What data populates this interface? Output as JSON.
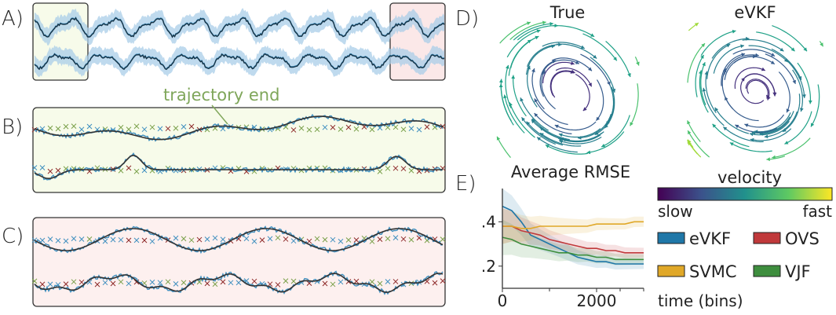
{
  "panel_labels": [
    "A)",
    "B)",
    "C)",
    "D)",
    "E)"
  ],
  "colors": {
    "data": "#3f8fbf",
    "band": "#a9cde8",
    "mean": "#173447",
    "truth": "#333333",
    "highlight_green": "#f7fbea",
    "highlight_pink": "#fbe8e8",
    "annotation": "#7fa65a",
    "cross_red": "#8e2a2a",
    "cross_green": "#7aa04a"
  },
  "annotation": {
    "text": "trajectory end"
  },
  "panel_d": {
    "titles": [
      "True",
      "eVKF"
    ],
    "icon": "streamplot-icon"
  },
  "chart_data": [
    {
      "type": "line",
      "panel": "E",
      "title": "Average RMSE",
      "xlabel": "time (bins)",
      "ylabel": "",
      "xlim": [
        0,
        3000
      ],
      "ylim": [
        0.1,
        0.55
      ],
      "xticks": [
        0,
        2000
      ],
      "xtick_labels": [
        "0",
        "2000"
      ],
      "yticks": [
        0.4,
        0.2
      ],
      "ytick_labels": [
        ".4",
        ".2"
      ],
      "grid": false,
      "legend_position": "right",
      "x": [
        0,
        200,
        400,
        600,
        800,
        1000,
        1200,
        1400,
        1600,
        1800,
        2000,
        2200,
        2400,
        2600,
        2800,
        3000
      ],
      "series": [
        {
          "name": "eVKF",
          "color": "#1f77a8",
          "values": [
            0.47,
            0.45,
            0.4,
            0.34,
            0.32,
            0.3,
            0.28,
            0.26,
            0.24,
            0.23,
            0.22,
            0.22,
            0.21,
            0.21,
            0.21,
            0.21
          ]
        },
        {
          "name": "OVS",
          "color": "#c0393b",
          "values": [
            0.38,
            0.38,
            0.36,
            0.35,
            0.34,
            0.32,
            0.31,
            0.3,
            0.29,
            0.28,
            0.28,
            0.27,
            0.27,
            0.26,
            0.26,
            0.26
          ]
        },
        {
          "name": "SVMC",
          "color": "#e0a828",
          "values": [
            0.38,
            0.38,
            0.37,
            0.37,
            0.38,
            0.38,
            0.38,
            0.38,
            0.38,
            0.38,
            0.39,
            0.39,
            0.39,
            0.39,
            0.4,
            0.4
          ]
        },
        {
          "name": "VJF",
          "color": "#3e8e3e",
          "values": [
            0.33,
            0.32,
            0.3,
            0.29,
            0.28,
            0.27,
            0.26,
            0.26,
            0.25,
            0.25,
            0.24,
            0.24,
            0.23,
            0.23,
            0.23,
            0.23
          ]
        }
      ]
    },
    {
      "type": "heatmap",
      "panel": "colorbar",
      "title": "velocity",
      "colormap": "viridis",
      "labels": [
        "slow",
        "fast"
      ]
    }
  ]
}
